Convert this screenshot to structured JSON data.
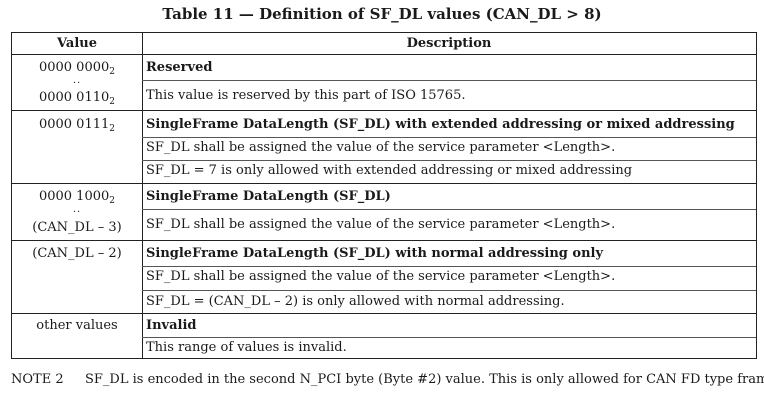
{
  "title": "Table 11 — Definition of SF_DL values (CAN_DL > 8)",
  "header": {
    "value": "Value",
    "description": "Description"
  },
  "rows": [
    {
      "value_main": "0000 0000",
      "value_main_sub": "2",
      "value_ellipsis": "..",
      "value_end": "0000 0110",
      "value_end_sub": "2",
      "desc_bold": "Reserved",
      "desc": [
        "This value is reserved by this part of ISO 15765."
      ]
    },
    {
      "value_main": "0000 0111",
      "value_main_sub": "2",
      "desc_bold": "SingleFrame DataLength (SF_DL) with extended addressing or mixed addressing",
      "desc": [
        "SF_DL shall be assigned the value of the service parameter <Length>.",
        "SF_DL = 7 is only allowed with extended addressing or mixed addressing"
      ]
    },
    {
      "value_main": "0000 1000",
      "value_main_sub": "2",
      "value_ellipsis": "..",
      "value_end": "(CAN_DL – 3)",
      "desc_bold": "SingleFrame DataLength (SF_DL)",
      "desc": [
        "SF_DL shall be assigned the value of the service parameter <Length>."
      ]
    },
    {
      "value_main": "(CAN_DL – 2)",
      "desc_bold": "SingleFrame DataLength (SF_DL) with normal addressing only",
      "desc": [
        "SF_DL shall be assigned the value of the service parameter <Length>.",
        "SF_DL = (CAN_DL – 2) is only allowed with normal addressing."
      ]
    },
    {
      "value_main": "other values",
      "desc_bold": "Invalid",
      "desc": [
        "This range of values is invalid."
      ]
    }
  ],
  "note": {
    "label": "NOTE 2",
    "text": "SF_DL is encoded in the second N_PCI byte (Byte #2) value. This is only allowed for CAN FD type frames."
  }
}
